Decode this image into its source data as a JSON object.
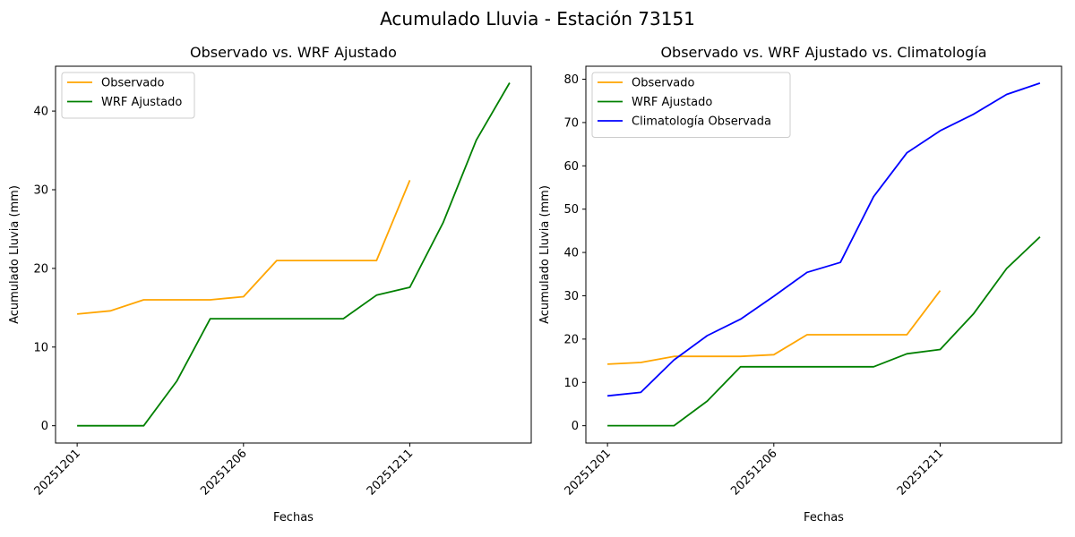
{
  "suptitle": "Acumulado Lluvia - Estación 73151",
  "colors": {
    "observado": "#ffa500",
    "wrf": "#008000",
    "climatologia": "#0000ff"
  },
  "chart_data": [
    {
      "type": "line",
      "title": "Observado vs. WRF Ajustado",
      "xlabel": "Fechas",
      "ylabel": "Acumulado Lluvia (mm)",
      "x": [
        "20251201",
        "20251202",
        "20251203",
        "20251204",
        "20251205",
        "20251206",
        "20251207",
        "20251208",
        "20251209",
        "20251210",
        "20251211",
        "20251212",
        "20251213",
        "20251214"
      ],
      "xticks": [
        "20251201",
        "20251206",
        "20251211"
      ],
      "xlim": [
        -0.65,
        13.65
      ],
      "ylim": [
        -2.2,
        45.7
      ],
      "yticks": [
        0,
        10,
        20,
        30,
        40
      ],
      "grid": false,
      "legend": "upper left",
      "series": [
        {
          "name": "Observado",
          "color_key": "observado",
          "values": [
            14.2,
            14.6,
            16.0,
            16.0,
            16.0,
            16.4,
            21.0,
            21.0,
            21.0,
            21.0,
            31.2,
            null,
            null,
            null
          ]
        },
        {
          "name": "WRF Ajustado",
          "color_key": "wrf",
          "values": [
            0.0,
            0.0,
            0.0,
            5.7,
            13.6,
            13.6,
            13.6,
            13.6,
            13.6,
            16.6,
            17.6,
            25.8,
            36.3,
            43.6
          ]
        }
      ]
    },
    {
      "type": "line",
      "title": "Observado vs. WRF Ajustado vs. Climatología",
      "xlabel": "Fechas",
      "ylabel": "Acumulado Lluvia (mm)",
      "x": [
        "20251201",
        "20251202",
        "20251203",
        "20251204",
        "20251205",
        "20251206",
        "20251207",
        "20251208",
        "20251209",
        "20251210",
        "20251211",
        "20251212",
        "20251213",
        "20251214"
      ],
      "xticks": [
        "20251201",
        "20251206",
        "20251211"
      ],
      "xlim": [
        -0.65,
        13.65
      ],
      "ylim": [
        -4.0,
        83.0
      ],
      "yticks": [
        0,
        10,
        20,
        30,
        40,
        50,
        60,
        70,
        80
      ],
      "grid": false,
      "legend": "upper left",
      "series": [
        {
          "name": "Observado",
          "color_key": "observado",
          "values": [
            14.2,
            14.6,
            16.0,
            16.0,
            16.0,
            16.4,
            21.0,
            21.0,
            21.0,
            21.0,
            31.2,
            null,
            null,
            null
          ]
        },
        {
          "name": "WRF Ajustado",
          "color_key": "wrf",
          "values": [
            0.0,
            0.0,
            0.0,
            5.7,
            13.6,
            13.6,
            13.6,
            13.6,
            13.6,
            16.6,
            17.6,
            25.8,
            36.3,
            43.6
          ]
        },
        {
          "name": "Climatología Observada",
          "color_key": "climatologia",
          "values": [
            6.9,
            7.7,
            15.2,
            20.8,
            24.6,
            29.9,
            35.4,
            37.7,
            52.9,
            63.0,
            68.1,
            71.9,
            76.5,
            79.1
          ]
        }
      ]
    }
  ]
}
